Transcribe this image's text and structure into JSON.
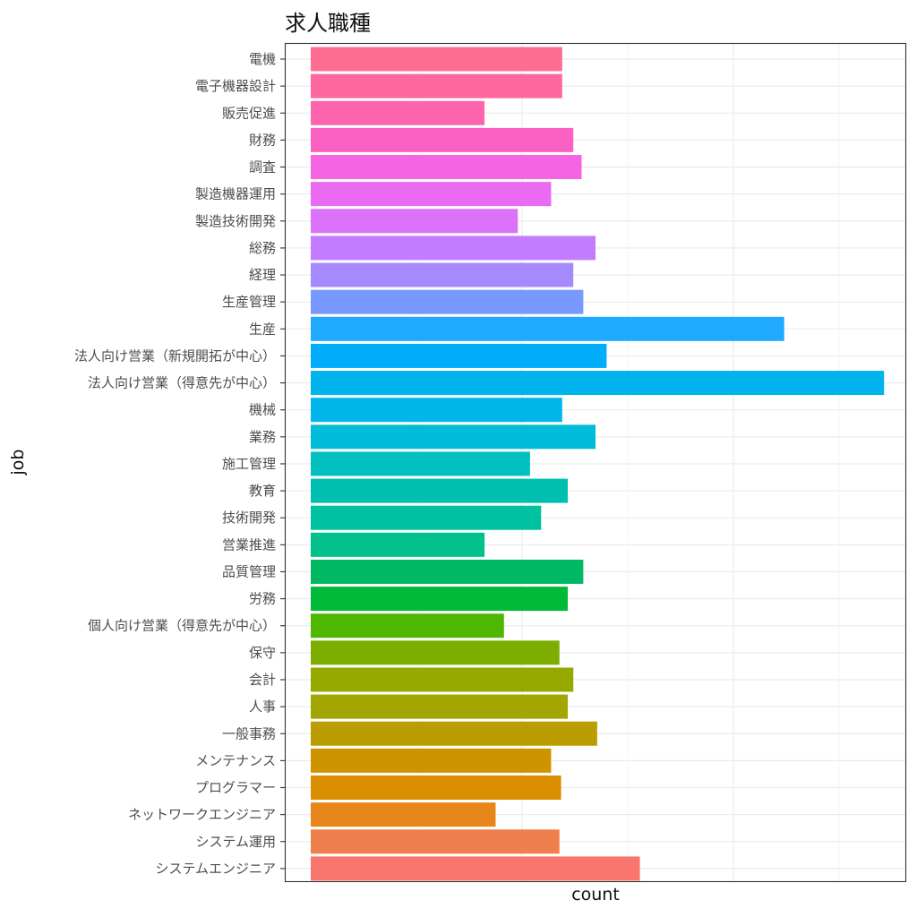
{
  "chart_data": {
    "type": "bar",
    "orientation": "horizontal",
    "title": "求人職種",
    "xlabel": "count",
    "ylabel": "job",
    "xlim": [
      0,
      1.12
    ],
    "grid": true,
    "theme": "bw",
    "categories": [
      "電機",
      "電子機器設計",
      "販売促進",
      "財務",
      "調査",
      "製造機器運用",
      "製造技術開発",
      "総務",
      "経理",
      "生産管理",
      "生産",
      "法人向け営業（新規開拓が中心）",
      "法人向け営業（得意先が中心）",
      "機械",
      "業務",
      "施工管理",
      "教育",
      "技術開発",
      "営業推進",
      "品質管理",
      "労務",
      "個人向け営業（得意先が中心）",
      "保守",
      "会計",
      "人事",
      "一般事務",
      "メンテナンス",
      "プログラマー",
      "ネットワークエンジニア",
      "システム運用",
      "システムエンジニア"
    ],
    "values": [
      0.5,
      0.5,
      0.36,
      0.52,
      0.535,
      0.48,
      0.42,
      0.56,
      0.52,
      0.538,
      0.9,
      0.58,
      1.08,
      0.5,
      0.56,
      0.442,
      0.51,
      0.462,
      0.36,
      0.538,
      0.51,
      0.395,
      0.495,
      0.52,
      0.51,
      0.563,
      0.48,
      0.498,
      0.38,
      0.495,
      0.64
    ],
    "colors": [
      "#FF6C91",
      "#FF689F",
      "#FF64AF",
      "#FB61C2",
      "#F564E3",
      "#EA6AF1",
      "#DC71FA",
      "#C37CFF",
      "#A58AFF",
      "#7698FF",
      "#1FA9FF",
      "#00ADFA",
      "#00B3ED",
      "#00B6EB",
      "#00BCD8",
      "#00C1C0",
      "#00BFB0",
      "#00C1A0",
      "#00C08B",
      "#00BA63",
      "#00BA38",
      "#4FB700",
      "#7CAE00",
      "#96A900",
      "#A3A500",
      "#BB9D00",
      "#CE9400",
      "#DB8E00",
      "#E7861B",
      "#F07F4E",
      "#F8766D"
    ]
  }
}
